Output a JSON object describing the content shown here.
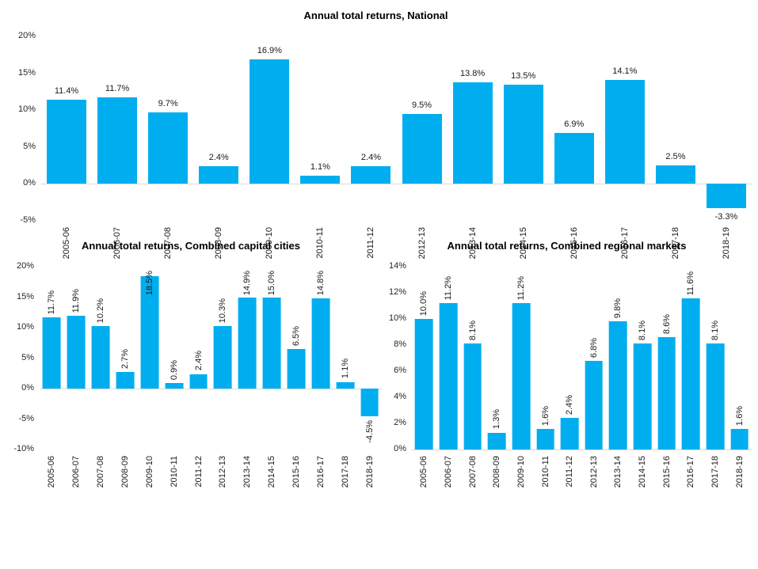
{
  "page": {
    "background": "#ffffff"
  },
  "colors": {
    "bar": "#00AEEF",
    "axis_line": "#D9D9D9",
    "label_text": "#1a1a1a"
  },
  "chart_data": [
    {
      "type": "bar",
      "title": "Annual total returns, National",
      "categories": [
        "2005-06",
        "2006-07",
        "2007-08",
        "2008-09",
        "2009-10",
        "2010-11",
        "2011-12",
        "2012-13",
        "2013-14",
        "2014-15",
        "2015-16",
        "2016-17",
        "2017-18",
        "2018-19"
      ],
      "values": [
        11.4,
        11.7,
        9.7,
        2.4,
        16.9,
        1.1,
        2.4,
        9.5,
        13.8,
        13.5,
        6.9,
        14.1,
        2.5,
        -3.3
      ],
      "value_suffix": "%",
      "xlabel": "",
      "ylabel": "",
      "ylim": [
        -5,
        20
      ],
      "yticks": [
        20,
        15,
        10,
        5,
        0,
        -5
      ],
      "ytick_suffix": "%",
      "grid": false,
      "legend": null,
      "layout_hints": {
        "value_label_orientation": "horizontal",
        "category_label_orientation": "vertical"
      }
    },
    {
      "type": "bar",
      "title": "Annual total returns, Combined capital cities",
      "categories": [
        "2005-06",
        "2006-07",
        "2007-08",
        "2008-09",
        "2009-10",
        "2010-11",
        "2011-12",
        "2012-13",
        "2013-14",
        "2014-15",
        "2015-16",
        "2016-17",
        "2017-18",
        "2018-19"
      ],
      "values": [
        11.7,
        11.9,
        10.2,
        2.7,
        18.5,
        0.9,
        2.4,
        10.3,
        14.9,
        15.0,
        6.5,
        14.8,
        1.1,
        -4.5
      ],
      "value_suffix": "%",
      "xlabel": "",
      "ylabel": "",
      "ylim": [
        -10,
        20
      ],
      "yticks": [
        20,
        15,
        10,
        5,
        0,
        -5,
        -10
      ],
      "ytick_suffix": "%",
      "grid": false,
      "legend": null,
      "layout_hints": {
        "value_label_orientation": "vertical",
        "category_label_orientation": "vertical"
      }
    },
    {
      "type": "bar",
      "title": "Annual total returns, Combined regional markets",
      "categories": [
        "2005-06",
        "2006-07",
        "2007-08",
        "2008-09",
        "2009-10",
        "2010-11",
        "2011-12",
        "2012-13",
        "2013-14",
        "2014-15",
        "2015-16",
        "2016-17",
        "2017-18",
        "2018-19"
      ],
      "values": [
        10.0,
        11.2,
        8.1,
        1.3,
        11.2,
        1.6,
        2.4,
        6.8,
        9.8,
        8.1,
        8.6,
        11.6,
        8.1,
        1.6
      ],
      "value_suffix": "%",
      "xlabel": "",
      "ylabel": "",
      "ylim": [
        0,
        14
      ],
      "yticks": [
        14,
        12,
        10,
        8,
        6,
        4,
        2,
        0
      ],
      "ytick_suffix": "%",
      "grid": false,
      "legend": null,
      "layout_hints": {
        "value_label_orientation": "vertical",
        "category_label_orientation": "vertical"
      }
    }
  ]
}
